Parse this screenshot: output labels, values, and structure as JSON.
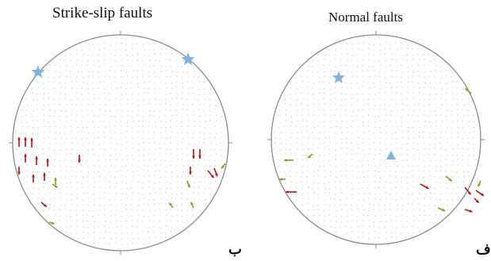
{
  "panels": [
    {
      "id": "strike-slip",
      "title": "Strike-slip faults",
      "letter": "ب",
      "stars": 2,
      "triangle": false
    },
    {
      "id": "normal",
      "title": "Normal faults",
      "letter": "ف",
      "stars": 1,
      "triangle": true
    }
  ],
  "colors": {
    "circle": "#8a8a8a",
    "grid": "#c9c9c9",
    "star": "#7fb3e0",
    "triangle": "#7fb3e0",
    "red_arrow": "#b01818",
    "green_arrow": "#8a9a28"
  }
}
